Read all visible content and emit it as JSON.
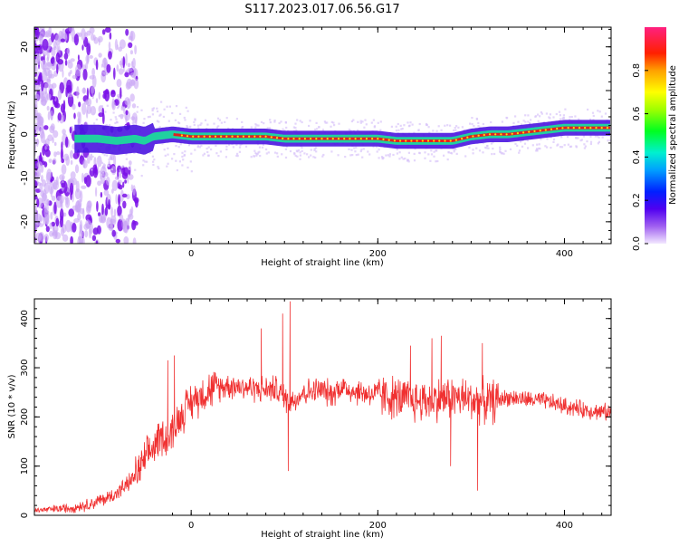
{
  "figure": {
    "title": "S117.2023.017.06.56.G17"
  },
  "chart_data": [
    {
      "type": "heatmap",
      "title": "S117.2023.017.06.56.G17",
      "xlabel": "Height of straight line (km)",
      "ylabel": "Frequency (Hz)",
      "xlim": [
        -168,
        450
      ],
      "ylim": [
        -25,
        24.5
      ],
      "x_ticks": [
        0,
        200,
        400
      ],
      "y_ticks": [
        -20,
        -10,
        0,
        10,
        20
      ],
      "ridge": {
        "description": "Peak spectral amplitude frequency track vs height",
        "x": [
          -120,
          -100,
          -80,
          -60,
          -50,
          -40,
          -20,
          0,
          20,
          40,
          60,
          80,
          100,
          120,
          150,
          180,
          200,
          220,
          240,
          260,
          280,
          300,
          320,
          340,
          360,
          380,
          400,
          420,
          450
        ],
        "y": [
          -1,
          -1,
          -1.5,
          -1,
          -1.5,
          -0.5,
          0,
          -0.5,
          -0.5,
          -0.5,
          -0.5,
          -0.5,
          -1,
          -1,
          -1,
          -1,
          -1,
          -1.5,
          -1.5,
          -1.5,
          -1.5,
          -0.5,
          0,
          0,
          0.5,
          1,
          1.5,
          1.5,
          1.5
        ]
      },
      "colorbar": {
        "label": "Normalized spectral amplitude",
        "range": [
          0.0,
          1.0
        ],
        "ticks": [
          0.0,
          0.2,
          0.4,
          0.6,
          0.8
        ]
      }
    },
    {
      "type": "line",
      "xlabel": "Height of straight line (km)",
      "ylabel": "SNR (10 * v/v)",
      "xlim": [
        -168,
        450
      ],
      "ylim": [
        0,
        440
      ],
      "x_ticks": [
        0,
        200,
        400
      ],
      "y_ticks": [
        0,
        100,
        200,
        300,
        400
      ],
      "series": [
        {
          "name": "SNR",
          "color": "#f03030",
          "x": [
            -168,
            -150,
            -130,
            -110,
            -90,
            -80,
            -70,
            -60,
            -50,
            -45,
            -40,
            -35,
            -30,
            -25,
            -20,
            -15,
            -10,
            -5,
            0,
            10,
            20,
            30,
            40,
            60,
            80,
            90,
            100,
            105,
            110,
            120,
            140,
            150,
            160,
            170,
            180,
            200,
            220,
            240,
            260,
            280,
            300,
            320,
            340,
            360,
            380,
            400,
            420,
            450
          ],
          "values": [
            10,
            12,
            15,
            22,
            35,
            45,
            60,
            80,
            110,
            125,
            140,
            155,
            165,
            150,
            175,
            190,
            205,
            220,
            230,
            245,
            255,
            260,
            265,
            260,
            255,
            258,
            240,
            230,
            235,
            250,
            255,
            245,
            262,
            255,
            250,
            245,
            238,
            232,
            235,
            240,
            235,
            230,
            240,
            235,
            232,
            222,
            215,
            208
          ],
          "spikes": [
            {
              "x": -18,
              "y": 325
            },
            {
              "x": -25,
              "y": 315
            },
            {
              "x": 75,
              "y": 380
            },
            {
              "x": 98,
              "y": 410
            },
            {
              "x": 106,
              "y": 435
            },
            {
              "x": 104,
              "y": 90
            },
            {
              "x": 258,
              "y": 360
            },
            {
              "x": 268,
              "y": 365
            },
            {
              "x": 278,
              "y": 100
            },
            {
              "x": 307,
              "y": 50
            },
            {
              "x": 312,
              "y": 350
            },
            {
              "x": 235,
              "y": 345
            }
          ]
        }
      ]
    }
  ],
  "colors": {
    "line": "#f03030",
    "scatter": "#8b2be2",
    "ridge": "#e02020",
    "inner_band": "#20d0a0",
    "background": "#ffffff"
  }
}
